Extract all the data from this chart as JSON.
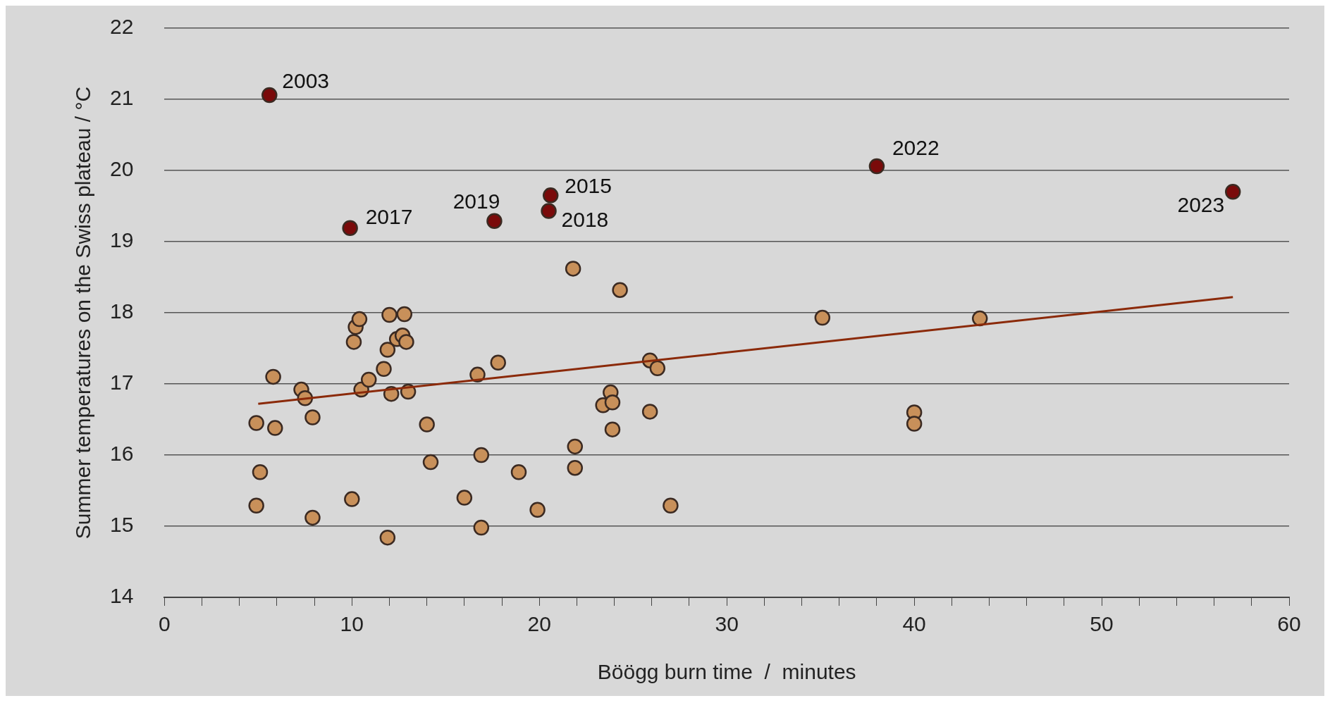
{
  "chart_data": {
    "type": "scatter",
    "xlabel": "Böögg burn time  /  minutes",
    "ylabel": "Summer temperatures on the Swiss plateau / °C",
    "xlim": [
      0,
      60
    ],
    "ylim": [
      14,
      22
    ],
    "xticks": [
      0,
      {
        "value": 2,
        "label": null
      },
      {
        "value": 4,
        "label": null
      },
      {
        "value": 6,
        "label": null
      },
      {
        "value": 8,
        "label": null
      },
      10,
      {
        "value": 12,
        "label": null
      },
      {
        "value": 14,
        "label": null
      },
      {
        "value": 16,
        "label": null
      },
      {
        "value": 18,
        "label": null
      },
      20,
      {
        "value": 22,
        "label": null
      },
      {
        "value": 24,
        "label": null
      },
      {
        "value": 26,
        "label": null
      },
      {
        "value": 28,
        "label": null
      },
      30,
      {
        "value": 32,
        "label": null
      },
      {
        "value": 34,
        "label": null
      },
      {
        "value": 36,
        "label": null
      },
      {
        "value": 38,
        "label": null
      },
      40,
      {
        "value": 42,
        "label": null
      },
      {
        "value": 44,
        "label": null
      },
      {
        "value": 46,
        "label": null
      },
      {
        "value": 48,
        "label": null
      },
      50,
      {
        "value": 52,
        "label": null
      },
      {
        "value": 54,
        "label": null
      },
      {
        "value": 56,
        "label": null
      },
      {
        "value": 58,
        "label": null
      },
      60
    ],
    "yticks": [
      14,
      15,
      16,
      17,
      18,
      19,
      20,
      21,
      22
    ],
    "grid": "y",
    "legend": false,
    "marker": "circle",
    "series": [
      {
        "color": "#c8905a",
        "x": [
          4.9,
          5.1,
          4.9,
          5.8,
          5.9,
          7.3,
          7.5,
          7.9,
          7.9,
          10.0,
          10.1,
          10.2,
          10.4,
          10.5,
          10.9,
          11.7,
          11.9,
          12.0,
          12.1,
          11.9,
          12.4,
          12.8,
          12.7,
          12.9,
          13.0,
          14.0,
          14.2,
          16.0,
          16.7,
          16.9,
          16.9,
          17.8,
          18.9,
          19.9,
          21.8,
          21.9,
          21.9,
          23.4,
          23.8,
          23.9,
          23.9,
          24.3,
          25.9,
          26.3,
          25.9,
          27.0,
          35.1,
          40.0,
          40.0,
          43.5
        ],
        "values": [
          16.45,
          15.76,
          15.29,
          17.1,
          16.38,
          16.92,
          16.8,
          16.53,
          15.12,
          15.38,
          17.59,
          17.8,
          17.91,
          16.92,
          17.06,
          17.21,
          17.48,
          17.97,
          16.86,
          14.84,
          17.63,
          17.98,
          17.68,
          17.59,
          16.89,
          16.43,
          15.9,
          15.4,
          17.13,
          16.0,
          14.98,
          17.3,
          15.76,
          15.23,
          18.62,
          16.12,
          15.82,
          16.7,
          16.88,
          16.74,
          16.36,
          18.32,
          17.33,
          17.22,
          16.61,
          15.29,
          17.93,
          16.6,
          16.44,
          17.92
        ]
      },
      {
        "color": "#7a0a0a",
        "x": [
          5.6,
          9.9,
          17.6,
          20.6,
          20.5,
          38.0,
          57.0
        ],
        "values": [
          21.06,
          19.19,
          19.29,
          19.65,
          19.43,
          20.06,
          19.7
        ]
      },
      {
        "type": "line",
        "color": "#8b2a0a",
        "marker": "none",
        "x": [
          5.0,
          57.0
        ],
        "values": [
          16.72,
          18.22
        ]
      }
    ],
    "annotations": [
      {
        "text": "2003",
        "x": 5.6,
        "y": 21.06
      },
      {
        "text": "2017",
        "x": 9.9,
        "y": 19.19
      },
      {
        "text": "2019",
        "x": 17.6,
        "y": 19.29
      },
      {
        "text": "2015",
        "x": 20.6,
        "y": 19.65
      },
      {
        "text": "2018",
        "x": 20.5,
        "y": 19.43
      },
      {
        "text": "2022",
        "x": 38.0,
        "y": 20.06
      },
      {
        "text": "2023",
        "x": 57.0,
        "y": 19.7
      }
    ]
  }
}
